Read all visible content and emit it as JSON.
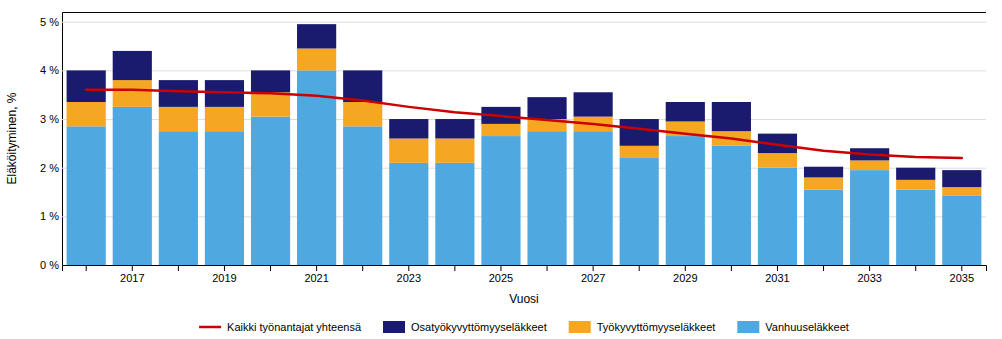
{
  "chart_data": {
    "type": "bar",
    "stacked": true,
    "categories": [
      null,
      "2017",
      null,
      "2019",
      null,
      "2021",
      null,
      "2023",
      null,
      "2025",
      null,
      "2027",
      null,
      "2029",
      null,
      "2031",
      null,
      "2033",
      null,
      "2035"
    ],
    "series": [
      {
        "name": "Vanhuuseläkkeet",
        "type": "bar",
        "color": "#4FA8E0",
        "values": [
          2.85,
          3.25,
          2.75,
          2.75,
          3.05,
          4.0,
          2.85,
          2.1,
          2.1,
          2.65,
          2.75,
          2.75,
          2.2,
          2.65,
          2.45,
          2.0,
          1.55,
          1.95,
          1.55,
          1.42
        ]
      },
      {
        "name": "Työkyvyttömyyseläkkeet",
        "type": "bar",
        "color": "#F5A623",
        "values": [
          0.5,
          0.55,
          0.5,
          0.5,
          0.5,
          0.45,
          0.5,
          0.5,
          0.5,
          0.25,
          0.25,
          0.3,
          0.25,
          0.3,
          0.3,
          0.3,
          0.25,
          0.2,
          0.2,
          0.18
        ]
      },
      {
        "name": "Osatyökyvyttömyyseläkkeet",
        "type": "bar",
        "color": "#1A1A6E",
        "values": [
          0.65,
          0.6,
          0.55,
          0.55,
          0.45,
          0.5,
          0.65,
          0.4,
          0.4,
          0.35,
          0.45,
          0.5,
          0.55,
          0.4,
          0.6,
          0.4,
          0.22,
          0.25,
          0.25,
          0.35
        ]
      },
      {
        "name": "Kaikki työnantajat yhteensä",
        "type": "line",
        "color": "#CC0000",
        "values": [
          3.6,
          3.6,
          3.57,
          3.55,
          3.53,
          3.48,
          3.38,
          3.25,
          3.14,
          3.06,
          2.98,
          2.9,
          2.8,
          2.7,
          2.6,
          2.47,
          2.35,
          2.27,
          2.22,
          2.2
        ]
      }
    ],
    "xlabel": "Vuosi",
    "ylabel": "Eläköityminen, %",
    "ylim": [
      0,
      5.2
    ],
    "yticks": [
      {
        "value": 0,
        "label": "0 %"
      },
      {
        "value": 1,
        "label": "1 %"
      },
      {
        "value": 2,
        "label": "2 %"
      },
      {
        "value": 3,
        "label": "3 %"
      },
      {
        "value": 4,
        "label": "4 %"
      },
      {
        "value": 5,
        "label": "5 %"
      }
    ],
    "grid": true,
    "legend": "bottom"
  }
}
